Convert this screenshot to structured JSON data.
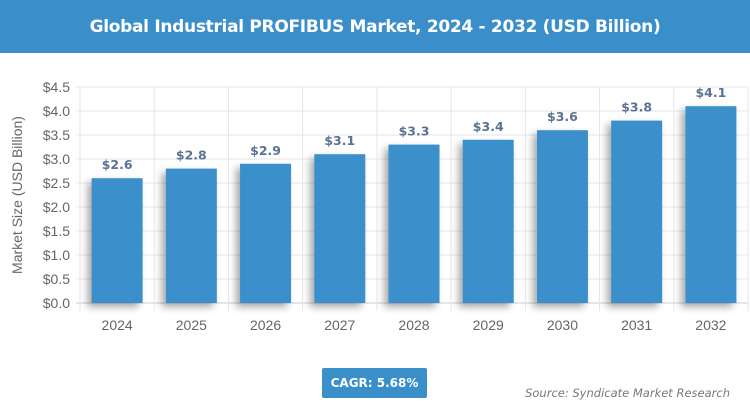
{
  "chart_data": {
    "type": "bar",
    "title": "Global Industrial PROFIBUS Market, 2024 - 2032 (USD Billion)",
    "ylabel": "Market Size (USD Billion)",
    "xlabel": "",
    "categories": [
      "2024",
      "2025",
      "2026",
      "2027",
      "2028",
      "2029",
      "2030",
      "2031",
      "2032"
    ],
    "values": [
      2.6,
      2.8,
      2.9,
      3.1,
      3.3,
      3.4,
      3.6,
      3.8,
      4.1
    ],
    "data_labels": [
      "$2.6",
      "$2.8",
      "$2.9",
      "$3.1",
      "$3.3",
      "$3.4",
      "$3.6",
      "$3.8",
      "$4.1"
    ],
    "ylim": [
      0,
      4.5
    ],
    "yticks": [
      "$0.0",
      "$0.5",
      "$1.0",
      "$1.5",
      "$2.0",
      "$2.5",
      "$3.0",
      "$3.5",
      "$4.0",
      "$4.5"
    ],
    "grid": true,
    "bar_color": "#3a8fcb",
    "label_color": "#5a7394"
  },
  "cagr": "CAGR: 5.68%",
  "source": "Source: Syndicate Market Research"
}
